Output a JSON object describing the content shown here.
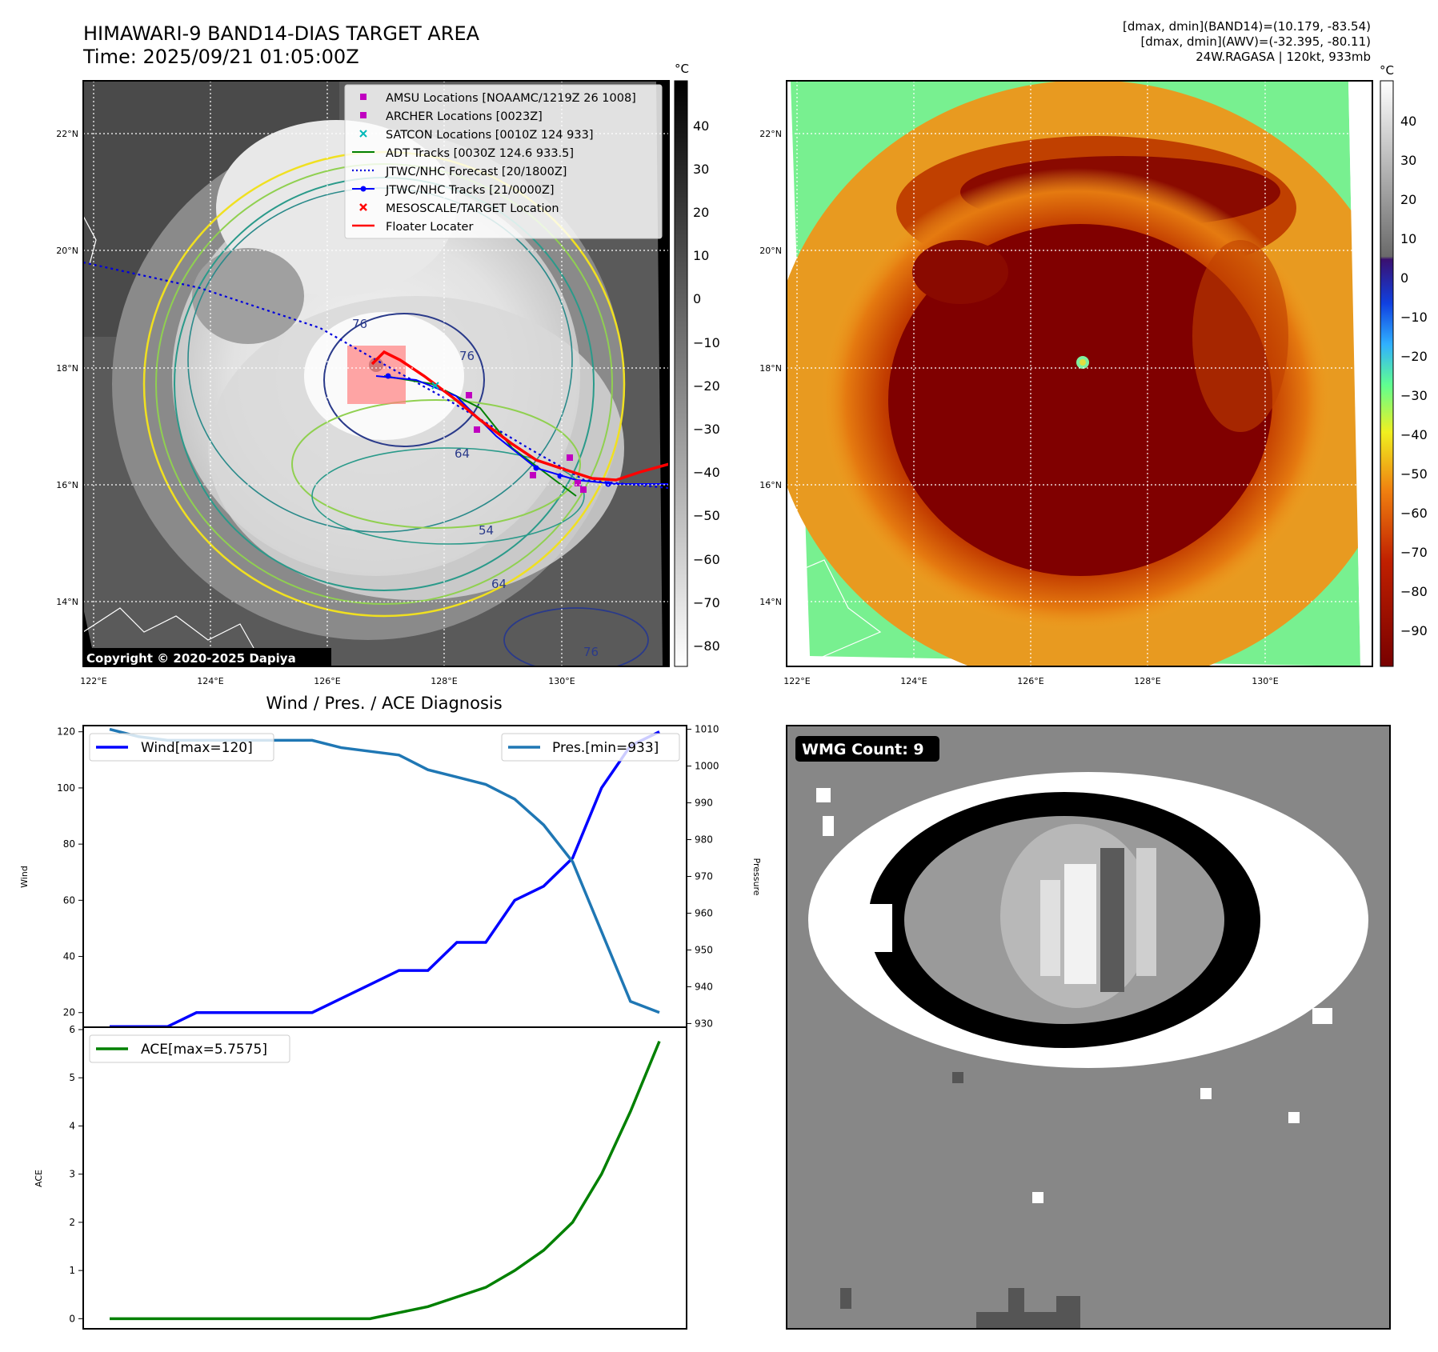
{
  "header": {
    "title_line1": "HIMAWARI-9 BAND14-DIAS TARGET AREA",
    "title_line2": "Time: 2025/09/21 01:05:00Z",
    "stats_line1": "[dmax, dmin](BAND14)=(10.179, -83.54)",
    "stats_line2": "[dmax, dmin](AWV)=(-32.395, -80.11)",
    "stats_line3": "24W.RAGASA | 120kt, 933mb"
  },
  "map_left": {
    "copyright": "Copyright © 2020-2025 Dapiya",
    "lat_labels": [
      "22°N",
      "20°N",
      "18°N",
      "16°N",
      "14°N"
    ],
    "lon_labels": [
      "122°E",
      "124°E",
      "126°E",
      "128°E",
      "130°E"
    ],
    "colorbar_unit": "°C",
    "colorbar_ticks": [
      "40",
      "30",
      "20",
      "10",
      "0",
      "−10",
      "−20",
      "−30",
      "−40",
      "−50",
      "−60",
      "−70",
      "−80"
    ],
    "contour_labels": [
      "76",
      "64",
      "76",
      "54",
      "64",
      "76"
    ],
    "legend": [
      {
        "label": "AMSU Locations [NOAAMC/1219Z 26 1008]",
        "marker": "square",
        "color": "#c000c0"
      },
      {
        "label": "ARCHER Locations [0023Z]",
        "marker": "square",
        "color": "#c000c0"
      },
      {
        "label": "SATCON Locations [0010Z 124 933]",
        "marker": "x",
        "color": "#00b8b8"
      },
      {
        "label": "ADT Tracks [0030Z 124.6 933.5]",
        "marker": "line",
        "color": "#008000"
      },
      {
        "label": "JTWC/NHC Forecast [20/1800Z]",
        "marker": "dotted",
        "color": "#0000dd"
      },
      {
        "label": "JTWC/NHC Tracks [21/0000Z]",
        "marker": "line-dot",
        "color": "#0000ff"
      },
      {
        "label": "MESOSCALE/TARGET Location",
        "marker": "x",
        "color": "#ff0000"
      },
      {
        "label": "Floater Locater",
        "marker": "line",
        "color": "#ff0000"
      }
    ]
  },
  "map_right": {
    "lat_labels": [
      "22°N",
      "20°N",
      "18°N",
      "16°N",
      "14°N"
    ],
    "lon_labels": [
      "122°E",
      "124°E",
      "126°E",
      "128°E",
      "130°E"
    ],
    "colorbar_unit": "°C",
    "colorbar_ticks": [
      "40",
      "30",
      "20",
      "10",
      "0",
      "−10",
      "−20",
      "−30",
      "−40",
      "−50",
      "−60",
      "−70",
      "−80",
      "−90"
    ]
  },
  "wmg": {
    "label": "WMG Count: 9"
  },
  "chart_data": [
    {
      "type": "line",
      "title": "Wind / Pres. / ACE Diagnosis",
      "ylabel": "Wind",
      "y2label": "Pressure",
      "ylim": [
        14.8,
        122.2
      ],
      "y2lim": [
        929,
        1011
      ],
      "yticks": [
        "20",
        "40",
        "60",
        "80",
        "100",
        "120"
      ],
      "y2ticks": [
        "930",
        "940",
        "950",
        "960",
        "970",
        "980",
        "990",
        "1000",
        "1010"
      ],
      "series": [
        {
          "name": "Wind[max=120]",
          "color": "#0000ff",
          "axis": "left",
          "values": [
            15,
            15,
            15,
            20,
            20,
            20,
            20,
            20,
            25,
            30,
            35,
            35,
            45,
            45,
            60,
            65,
            75,
            100,
            115,
            120
          ]
        },
        {
          "name": "Pres.[min=933]",
          "color": "#1f77b4",
          "axis": "right",
          "values": [
            1010,
            1008,
            1007,
            1007,
            1007,
            1007,
            1007,
            1007,
            1005,
            1004,
            1003,
            999,
            997,
            995,
            991,
            984,
            974,
            955,
            936,
            933
          ]
        }
      ]
    },
    {
      "type": "line",
      "ylabel": "ACE",
      "ylim": [
        -0.21,
        6.05
      ],
      "yticks": [
        "0",
        "1",
        "2",
        "3",
        "4",
        "5",
        "6"
      ],
      "series": [
        {
          "name": "ACE[max=5.7575]",
          "color": "#008000",
          "values": [
            0,
            0,
            0,
            0,
            0,
            0,
            0,
            0,
            0,
            0,
            0.125,
            0.25,
            0.45,
            0.65,
            1.0,
            1.42,
            2.0,
            3.0,
            4.3,
            5.7575
          ]
        }
      ]
    }
  ]
}
